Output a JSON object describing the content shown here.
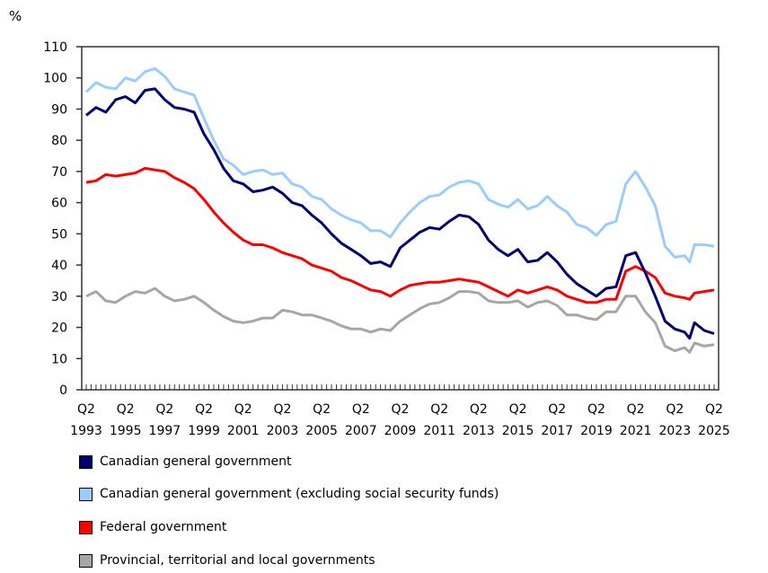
{
  "chart_data": {
    "type": "line",
    "ylabel": "%",
    "ylim": [
      0,
      110
    ],
    "yticks": [
      0,
      10,
      20,
      30,
      40,
      50,
      60,
      70,
      80,
      90,
      100,
      110
    ],
    "xtick_labels": [
      {
        "q": "Q2",
        "year": "1993"
      },
      {
        "q": "Q2",
        "year": "1995"
      },
      {
        "q": "Q2",
        "year": "1997"
      },
      {
        "q": "Q2",
        "year": "1999"
      },
      {
        "q": "Q2",
        "year": "2001"
      },
      {
        "q": "Q2",
        "year": "2003"
      },
      {
        "q": "Q2",
        "year": "2005"
      },
      {
        "q": "Q2",
        "year": "2007"
      },
      {
        "q": "Q2",
        "year": "2009"
      },
      {
        "q": "Q2",
        "year": "2011"
      },
      {
        "q": "Q2",
        "year": "2013"
      },
      {
        "q": "Q2",
        "year": "2015"
      },
      {
        "q": "Q2",
        "year": "2017"
      },
      {
        "q": "Q2",
        "year": "2019"
      },
      {
        "q": "Q2",
        "year": "2021"
      },
      {
        "q": "Q2",
        "year": "2023"
      },
      {
        "q": "Q2",
        "year": "2025"
      }
    ],
    "grid": false,
    "legend_position": "bottom",
    "x": [
      "1993Q2",
      "1993Q4",
      "1994Q2",
      "1994Q4",
      "1995Q2",
      "1995Q4",
      "1996Q2",
      "1996Q4",
      "1997Q2",
      "1997Q4",
      "1998Q2",
      "1998Q4",
      "1999Q2",
      "1999Q4",
      "2000Q2",
      "2000Q4",
      "2001Q2",
      "2001Q4",
      "2002Q2",
      "2002Q4",
      "2003Q2",
      "2003Q4",
      "2004Q2",
      "2004Q4",
      "2005Q2",
      "2005Q4",
      "2006Q2",
      "2006Q4",
      "2007Q2",
      "2007Q4",
      "2008Q2",
      "2008Q4",
      "2009Q2",
      "2009Q4",
      "2010Q2",
      "2010Q4",
      "2011Q2",
      "2011Q4",
      "2012Q2",
      "2012Q4",
      "2013Q2",
      "2013Q4",
      "2014Q2",
      "2014Q4",
      "2015Q2",
      "2015Q4",
      "2016Q2",
      "2016Q4",
      "2017Q2",
      "2017Q4",
      "2018Q2",
      "2018Q4",
      "2019Q2",
      "2019Q4",
      "2020Q2",
      "2020Q4",
      "2021Q2",
      "2021Q4",
      "2022Q2",
      "2022Q4",
      "2023Q2",
      "2023Q4",
      "2024Q1",
      "2024Q2",
      "2024Q4",
      "2025Q2"
    ],
    "series": [
      {
        "name": "Canadian general government",
        "color": "#000070",
        "values": [
          88,
          90.5,
          89,
          93,
          94,
          92,
          96,
          96.5,
          93,
          90.5,
          90,
          89,
          82,
          77,
          71,
          67,
          66,
          63.5,
          64,
          65,
          63,
          60,
          59,
          56,
          53.5,
          50,
          47,
          45,
          43,
          40.5,
          41,
          39.5,
          45.5,
          48,
          50.5,
          52,
          51.5,
          54,
          56,
          55.5,
          53,
          48,
          45,
          43,
          45,
          41,
          41.5,
          44,
          41,
          37,
          34,
          32,
          30,
          32.5,
          33,
          43,
          44,
          37.5,
          30,
          22,
          19.5,
          18.5,
          16.5,
          21.5,
          19,
          18
        ]
      },
      {
        "name": "Canadian general government (excluding social security funds)",
        "color": "#99ccff",
        "values": [
          95.5,
          98.5,
          97,
          96.5,
          100,
          99,
          102,
          103,
          100.5,
          96.5,
          95.5,
          94.5,
          87,
          80,
          74,
          72,
          69,
          70,
          70.5,
          69,
          69.5,
          66,
          65,
          62,
          61,
          58,
          56,
          54.5,
          53.5,
          51,
          51,
          49,
          53.5,
          57,
          60,
          62,
          62.5,
          65,
          66.5,
          67,
          66,
          61,
          59.5,
          58.5,
          61,
          58,
          59,
          62,
          59,
          57,
          53,
          52,
          49.5,
          53,
          54,
          66,
          70,
          65,
          59,
          46,
          42.5,
          43,
          41,
          46.5,
          46.5,
          46
        ]
      },
      {
        "name": "Federal government",
        "color": "#ff0000",
        "values": [
          66.5,
          67,
          69,
          68.5,
          69,
          69.5,
          71,
          70.5,
          70,
          68,
          66.5,
          64.5,
          61,
          57,
          53.5,
          50.5,
          48,
          46.5,
          46.5,
          45.5,
          44,
          43,
          42,
          40,
          39,
          38,
          36,
          35,
          33.5,
          32,
          31.5,
          30,
          32,
          33.5,
          34,
          34.5,
          34.5,
          35,
          35.5,
          35,
          34.5,
          33,
          31.5,
          30,
          32,
          31,
          32,
          33,
          32,
          30,
          29,
          28,
          28,
          29,
          29,
          38,
          39.5,
          38,
          36,
          31,
          30,
          29.5,
          29,
          31,
          31.5,
          32
        ]
      },
      {
        "name": "Provincial, territorial and local governments",
        "color": "#a6a6a6",
        "values": [
          30,
          31.5,
          28.5,
          28,
          30,
          31.5,
          31,
          32.5,
          30,
          28.5,
          29,
          30,
          28,
          25.5,
          23.5,
          22,
          21.5,
          22,
          23,
          23,
          25.5,
          25,
          24,
          24,
          23,
          22,
          20.5,
          19.5,
          19.5,
          18.5,
          19.5,
          19,
          22,
          24,
          26,
          27.5,
          28,
          29.5,
          31.5,
          31.5,
          31,
          28.5,
          28,
          28,
          28.5,
          26.5,
          28,
          28.5,
          27,
          24,
          24,
          23,
          22.5,
          25,
          25,
          30,
          30,
          25,
          21.5,
          14,
          12.5,
          13.5,
          12,
          15,
          14,
          14.5
        ]
      }
    ]
  }
}
